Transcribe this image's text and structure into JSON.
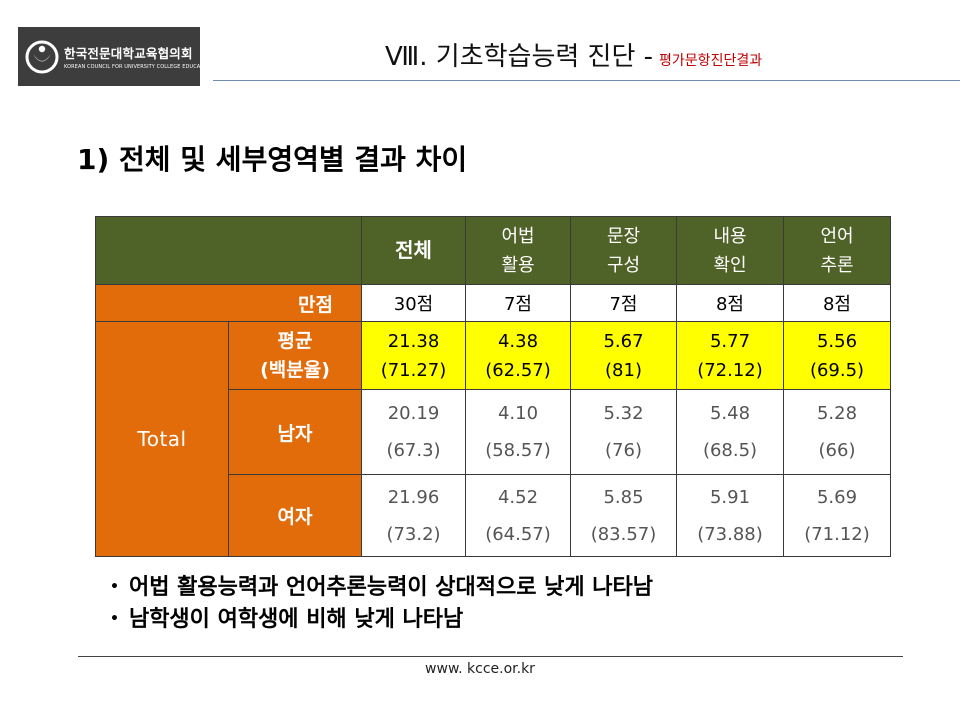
{
  "logo": {
    "name_ko": "한국전문대학교육협의회",
    "name_en": "KOREAN COUNCIL FOR UNIVERSITY COLLEGE EDUCATION"
  },
  "header": {
    "title": "Ⅷ. 기초학습능력 진단 -",
    "subtitle": "평가문항진단결과"
  },
  "section_title": "1) 전체 및 세부영역별 결과 차이",
  "table": {
    "columns": [
      {
        "l1": "전체",
        "l2": ""
      },
      {
        "l1": "어법",
        "l2": "활용"
      },
      {
        "l1": "문장",
        "l2": "구성"
      },
      {
        "l1": "내용",
        "l2": "확인"
      },
      {
        "l1": "언어",
        "l2": "추론"
      }
    ],
    "full_score": {
      "label": "만점",
      "values": [
        "30점",
        "7점",
        "7점",
        "8점",
        "8점"
      ]
    },
    "group_label": "Total",
    "rows": [
      {
        "label": "평균",
        "label2": "(백분율)",
        "highlight": true,
        "values": [
          {
            "score": "21.38",
            "pct": "(71.27)"
          },
          {
            "score": "4.38",
            "pct": "(62.57)"
          },
          {
            "score": "5.67",
            "pct": "(81)"
          },
          {
            "score": "5.77",
            "pct": "(72.12)"
          },
          {
            "score": "5.56",
            "pct": "(69.5)"
          }
        ]
      },
      {
        "label": "남자",
        "label2": "",
        "highlight": false,
        "values": [
          {
            "score": "20.19",
            "pct": "(67.3)"
          },
          {
            "score": "4.10",
            "pct": "(58.57)"
          },
          {
            "score": "5.32",
            "pct": "(76)"
          },
          {
            "score": "5.48",
            "pct": "(68.5)"
          },
          {
            "score": "5.28",
            "pct": "(66)"
          }
        ]
      },
      {
        "label": "여자",
        "label2": "",
        "highlight": false,
        "values": [
          {
            "score": "21.96",
            "pct": "(73.2)"
          },
          {
            "score": "4.52",
            "pct": "(64.57)"
          },
          {
            "score": "5.85",
            "pct": "(83.57)"
          },
          {
            "score": "5.91",
            "pct": "(73.88)"
          },
          {
            "score": "5.69",
            "pct": "(71.12)"
          }
        ]
      }
    ]
  },
  "bullets": [
    "어법 활용능력과 언어추론능력이 상대적으로 낮게 나타남",
    "남학생이 여학생에 비해 낮게 나타남"
  ],
  "footer": {
    "url": "www. kcce.or.kr"
  },
  "colors": {
    "header_green": "#4f6228",
    "label_orange": "#e26b0a",
    "highlight_yellow": "#ffff00"
  }
}
